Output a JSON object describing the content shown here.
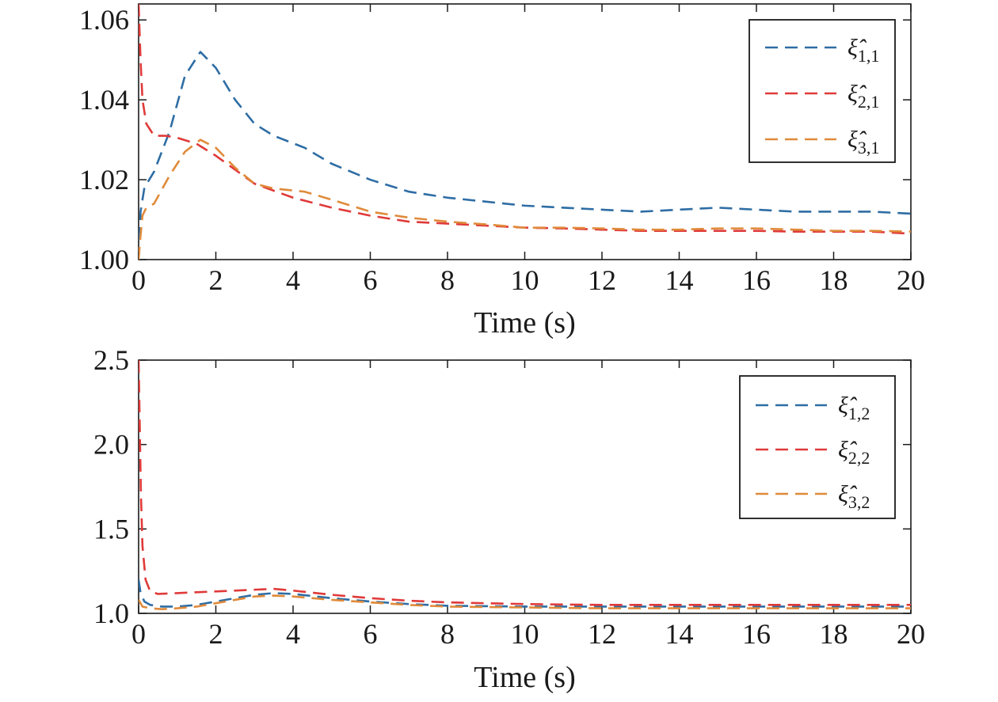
{
  "chart_data": [
    {
      "type": "line",
      "xlabel": "Time (s)",
      "ylabel": "",
      "xlim": [
        0,
        20
      ],
      "ylim": [
        1.0,
        1.064
      ],
      "xticks": [
        0,
        2,
        4,
        6,
        8,
        10,
        12,
        14,
        16,
        18,
        20
      ],
      "yticks": [
        "1.00",
        "1.02",
        "1.04",
        "1.06"
      ],
      "ytick_values": [
        1.0,
        1.02,
        1.04,
        1.06
      ],
      "grid": false,
      "legend_position": "top-right",
      "line_style": "dashed",
      "series": [
        {
          "symbol": "ξ̂",
          "subscript": "1,1",
          "color": "#2E6DA4",
          "points": [
            [
              0,
              1.0
            ],
            [
              0.05,
              1.012
            ],
            [
              0.15,
              1.018
            ],
            [
              0.4,
              1.022
            ],
            [
              0.8,
              1.032
            ],
            [
              1.2,
              1.046
            ],
            [
              1.6,
              1.052
            ],
            [
              2.0,
              1.048
            ],
            [
              2.5,
              1.04
            ],
            [
              3.0,
              1.034
            ],
            [
              3.5,
              1.031
            ],
            [
              4.3,
              1.028
            ],
            [
              5.0,
              1.024
            ],
            [
              6.0,
              1.02
            ],
            [
              7.0,
              1.017
            ],
            [
              8.0,
              1.0155
            ],
            [
              9.0,
              1.0145
            ],
            [
              10.0,
              1.0135
            ],
            [
              11.0,
              1.013
            ],
            [
              12.0,
              1.0125
            ],
            [
              13.0,
              1.012
            ],
            [
              14.0,
              1.0125
            ],
            [
              15.0,
              1.013
            ],
            [
              16.0,
              1.0125
            ],
            [
              17.0,
              1.012
            ],
            [
              18.0,
              1.012
            ],
            [
              19.0,
              1.012
            ],
            [
              20.0,
              1.0115
            ]
          ]
        },
        {
          "symbol": "ξ̂",
          "subscript": "2,1",
          "color": "#E03A3A",
          "points": [
            [
              0,
              1.064
            ],
            [
              0.05,
              1.05
            ],
            [
              0.1,
              1.04
            ],
            [
              0.2,
              1.034
            ],
            [
              0.4,
              1.031
            ],
            [
              0.7,
              1.031
            ],
            [
              1.0,
              1.0305
            ],
            [
              1.5,
              1.029
            ],
            [
              2.0,
              1.026
            ],
            [
              3.0,
              1.019
            ],
            [
              4.0,
              1.0155
            ],
            [
              5.0,
              1.013
            ],
            [
              6.0,
              1.011
            ],
            [
              7.0,
              1.0095
            ],
            [
              8.0,
              1.009
            ],
            [
              9.0,
              1.0085
            ],
            [
              10.0,
              1.008
            ],
            [
              11.0,
              1.0078
            ],
            [
              12.0,
              1.0075
            ],
            [
              13.0,
              1.0072
            ],
            [
              14.0,
              1.0072
            ],
            [
              15.0,
              1.0072
            ],
            [
              16.0,
              1.0072
            ],
            [
              17.0,
              1.007
            ],
            [
              18.0,
              1.007
            ],
            [
              19.0,
              1.007
            ],
            [
              20.0,
              1.0065
            ]
          ]
        },
        {
          "symbol": "ξ̂",
          "subscript": "3,1",
          "color": "#E08A3A",
          "points": [
            [
              0,
              1.0
            ],
            [
              0.05,
              1.006
            ],
            [
              0.1,
              1.011
            ],
            [
              0.2,
              1.013
            ],
            [
              0.4,
              1.014
            ],
            [
              0.8,
              1.021
            ],
            [
              1.2,
              1.027
            ],
            [
              1.6,
              1.03
            ],
            [
              2.0,
              1.028
            ],
            [
              2.5,
              1.023
            ],
            [
              3.0,
              1.019
            ],
            [
              3.5,
              1.0178
            ],
            [
              4.3,
              1.017
            ],
            [
              5.0,
              1.015
            ],
            [
              6.0,
              1.012
            ],
            [
              7.0,
              1.0105
            ],
            [
              8.0,
              1.0095
            ],
            [
              9.0,
              1.0088
            ],
            [
              10.0,
              1.008
            ],
            [
              11.0,
              1.008
            ],
            [
              12.0,
              1.0078
            ],
            [
              13.0,
              1.0075
            ],
            [
              14.0,
              1.0075
            ],
            [
              15.0,
              1.0078
            ],
            [
              16.0,
              1.0078
            ],
            [
              17.0,
              1.0075
            ],
            [
              18.0,
              1.0072
            ],
            [
              19.0,
              1.0072
            ],
            [
              20.0,
              1.007
            ]
          ]
        }
      ],
      "legend_entries": [
        {
          "symbol": "ξ̂",
          "subscript": "1,1"
        },
        {
          "symbol": "ξ̂",
          "subscript": "2,1"
        },
        {
          "symbol": "ξ̂",
          "subscript": "3,1"
        }
      ]
    },
    {
      "type": "line",
      "xlabel": "Time (s)",
      "ylabel": "",
      "xlim": [
        0,
        20
      ],
      "ylim": [
        1.0,
        2.5
      ],
      "xticks": [
        0,
        2,
        4,
        6,
        8,
        10,
        12,
        14,
        16,
        18,
        20
      ],
      "yticks": [
        "1.0",
        "1.5",
        "2.0",
        "2.5"
      ],
      "ytick_values": [
        1.0,
        1.5,
        2.0,
        2.5
      ],
      "grid": false,
      "legend_position": "top-right",
      "line_style": "dashed",
      "series": [
        {
          "symbol": "ξ̂",
          "subscript": "1,2",
          "color": "#2E6DA4",
          "points": [
            [
              0,
              1.2
            ],
            [
              0.05,
              1.12
            ],
            [
              0.15,
              1.07
            ],
            [
              0.3,
              1.05
            ],
            [
              0.6,
              1.04
            ],
            [
              1.0,
              1.04
            ],
            [
              1.5,
              1.05
            ],
            [
              2.0,
              1.07
            ],
            [
              2.5,
              1.09
            ],
            [
              3.0,
              1.11
            ],
            [
              3.5,
              1.12
            ],
            [
              4.0,
              1.115
            ],
            [
              5.0,
              1.09
            ],
            [
              6.0,
              1.07
            ],
            [
              7.0,
              1.055
            ],
            [
              8.0,
              1.045
            ],
            [
              10.0,
              1.04
            ],
            [
              12.0,
              1.04
            ],
            [
              14.0,
              1.04
            ],
            [
              16.0,
              1.04
            ],
            [
              18.0,
              1.04
            ],
            [
              20.0,
              1.04
            ]
          ]
        },
        {
          "symbol": "ξ̂",
          "subscript": "2,2",
          "color": "#E03A3A",
          "points": [
            [
              0,
              2.5
            ],
            [
              0.03,
              2.1
            ],
            [
              0.06,
              1.7
            ],
            [
              0.1,
              1.4
            ],
            [
              0.18,
              1.2
            ],
            [
              0.3,
              1.13
            ],
            [
              0.5,
              1.115
            ],
            [
              1.0,
              1.12
            ],
            [
              2.0,
              1.13
            ],
            [
              3.0,
              1.14
            ],
            [
              3.5,
              1.145
            ],
            [
              4.0,
              1.135
            ],
            [
              5.0,
              1.11
            ],
            [
              6.0,
              1.09
            ],
            [
              7.0,
              1.075
            ],
            [
              8.0,
              1.065
            ],
            [
              10.0,
              1.055
            ],
            [
              12.0,
              1.05
            ],
            [
              14.0,
              1.05
            ],
            [
              16.0,
              1.05
            ],
            [
              18.0,
              1.05
            ],
            [
              20.0,
              1.05
            ]
          ]
        },
        {
          "symbol": "ξ̂",
          "subscript": "3,2",
          "color": "#E08A3A",
          "points": [
            [
              0,
              1.08
            ],
            [
              0.1,
              1.04
            ],
            [
              0.3,
              1.03
            ],
            [
              0.6,
              1.025
            ],
            [
              1.0,
              1.03
            ],
            [
              1.5,
              1.04
            ],
            [
              2.0,
              1.06
            ],
            [
              2.5,
              1.08
            ],
            [
              3.0,
              1.1
            ],
            [
              3.5,
              1.105
            ],
            [
              4.0,
              1.1
            ],
            [
              5.0,
              1.08
            ],
            [
              6.0,
              1.065
            ],
            [
              7.0,
              1.05
            ],
            [
              8.0,
              1.04
            ],
            [
              10.0,
              1.035
            ],
            [
              12.0,
              1.03
            ],
            [
              14.0,
              1.03
            ],
            [
              16.0,
              1.03
            ],
            [
              18.0,
              1.03
            ],
            [
              20.0,
              1.03
            ]
          ]
        }
      ],
      "legend_entries": [
        {
          "symbol": "ξ̂",
          "subscript": "1,2"
        },
        {
          "symbol": "ξ̂",
          "subscript": "2,2"
        },
        {
          "symbol": "ξ̂",
          "subscript": "3,2"
        }
      ]
    }
  ]
}
